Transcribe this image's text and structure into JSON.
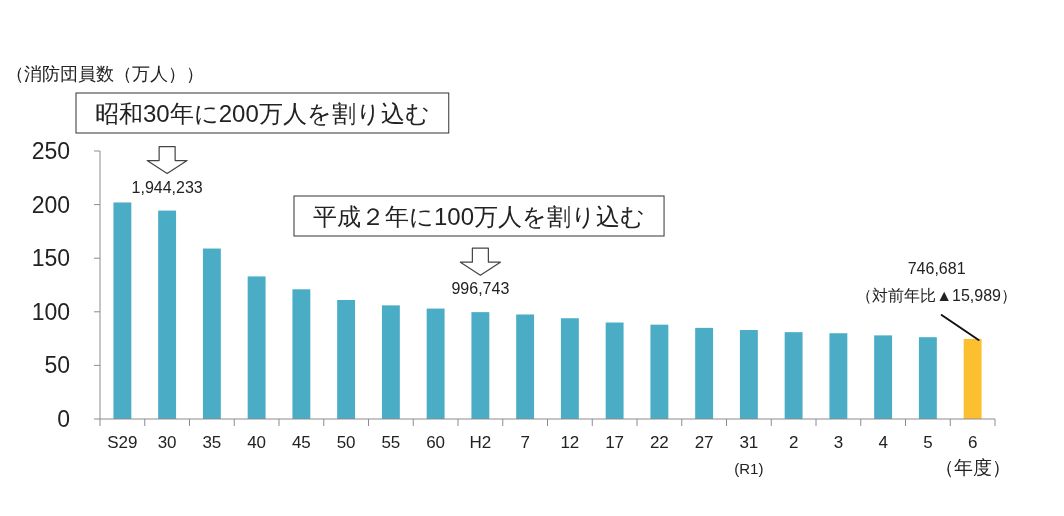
{
  "chart_data": {
    "type": "bar",
    "ylabel": "（消防団員数（万人））",
    "xlabel": "（年度）",
    "categories": [
      "S29",
      "30",
      "35",
      "40",
      "45",
      "50",
      "55",
      "60",
      "H2",
      "7",
      "12",
      "17",
      "22",
      "27",
      "31\n(R1)",
      "2",
      "3",
      "4",
      "5",
      "6"
    ],
    "values": [
      202,
      194.4233,
      159,
      133,
      121,
      111,
      106,
      103,
      99.6743,
      97.5,
      94,
      90,
      88,
      85,
      83,
      81,
      80,
      78,
      76.3,
      74.6681
    ],
    "colors": [
      "#4bacc6",
      "#4bacc6",
      "#4bacc6",
      "#4bacc6",
      "#4bacc6",
      "#4bacc6",
      "#4bacc6",
      "#4bacc6",
      "#4bacc6",
      "#4bacc6",
      "#4bacc6",
      "#4bacc6",
      "#4bacc6",
      "#4bacc6",
      "#4bacc6",
      "#4bacc6",
      "#4bacc6",
      "#4bacc6",
      "#4bacc6",
      "#fbbf2f"
    ],
    "ylim": [
      0,
      250
    ],
    "yticks": [
      0,
      50,
      100,
      150,
      200,
      250
    ],
    "annotations": [
      "昭和30年に200万人を割り込む",
      {
        "text": "1,944,233",
        "x": "30",
        "y": 194.4233
      },
      "平成２年に100万人を割り込む",
      {
        "text": "996,743",
        "x": "H2",
        "y": 99.6743
      },
      {
        "text": "746,681\n（対前年比▲15,989）",
        "x": "6",
        "y": 74.6681
      }
    ]
  }
}
